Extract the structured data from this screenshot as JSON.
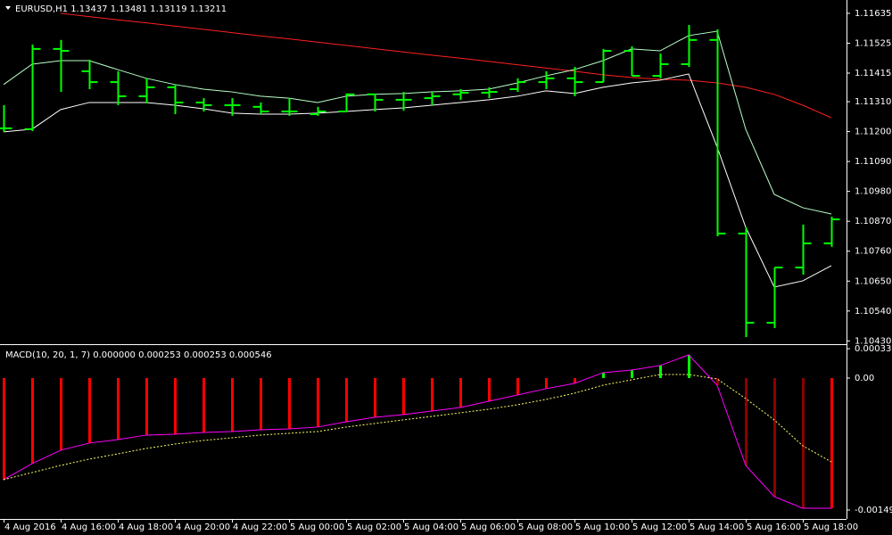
{
  "chart_data": [
    {
      "type": "ohlc",
      "title": "EURUSD,H1  1.13437 1.13481 1.13119 1.13211",
      "color": "#00ff00",
      "open": [
        1.11212,
        1.11209,
        1.11504,
        1.11422,
        1.11382,
        1.1133,
        1.11363,
        1.11307,
        1.11297,
        1.11291,
        1.11274,
        1.11264,
        1.11274,
        1.11337,
        1.11317,
        1.11323,
        1.11337,
        1.11343,
        1.11356,
        1.11382,
        1.11396,
        1.11382,
        1.11497,
        1.11405,
        1.11448,
        1.11537,
        1.10825,
        1.10497,
        1.107,
        1.10789
      ],
      "high": [
        1.11297,
        1.1152,
        1.11537,
        1.11464,
        1.11422,
        1.11396,
        1.11373,
        1.11323,
        1.11323,
        1.11307,
        1.11323,
        1.11291,
        1.1134,
        1.1134,
        1.11346,
        1.11346,
        1.11356,
        1.11363,
        1.11396,
        1.11422,
        1.11438,
        1.11504,
        1.11514,
        1.11487,
        1.11592,
        1.11576,
        1.10848,
        1.107,
        1.10858,
        1.10887
      ],
      "low": [
        1.11199,
        1.11202,
        1.11346,
        1.11356,
        1.11297,
        1.11304,
        1.11264,
        1.11274,
        1.11258,
        1.11264,
        1.11258,
        1.11258,
        1.11274,
        1.11274,
        1.11277,
        1.11297,
        1.11317,
        1.11323,
        1.11346,
        1.11356,
        1.1133,
        1.11382,
        1.11405,
        1.11396,
        1.11438,
        1.10815,
        1.10444,
        1.10477,
        1.10674,
        1.10776
      ],
      "close": [
        1.11212,
        1.11504,
        1.11497,
        1.11382,
        1.1133,
        1.11363,
        1.11307,
        1.11297,
        1.11297,
        1.11274,
        1.11274,
        1.11274,
        1.11337,
        1.11317,
        1.11317,
        1.1133,
        1.11343,
        1.11346,
        1.11382,
        1.11396,
        1.11382,
        1.11497,
        1.11405,
        1.11448,
        1.11537,
        1.10825,
        1.10497,
        1.107,
        1.10789,
        1.10877
      ],
      "overlays": [
        {
          "color": "#ff2020",
          "values": [
            null,
            null,
            1.11635,
            1.11623,
            1.11611,
            1.116,
            1.11588,
            1.11576,
            1.11564,
            1.11552,
            1.11541,
            1.11529,
            1.11517,
            1.11505,
            1.11493,
            1.11481,
            1.1147,
            1.11458,
            1.11446,
            1.11434,
            1.11422,
            1.11409,
            1.11399,
            1.11392,
            1.11389,
            1.11379,
            1.11363,
            1.11337,
            1.11297,
            1.11251
          ]
        },
        {
          "color": "#b8ffc8",
          "values": [
            1.11373,
            1.11448,
            1.11461,
            1.11461,
            1.11428,
            1.11396,
            1.11373,
            1.11356,
            1.11346,
            1.1133,
            1.11323,
            1.11307,
            1.1133,
            1.11337,
            1.1134,
            1.11346,
            1.1135,
            1.11356,
            1.11379,
            1.11405,
            1.11428,
            1.11461,
            1.11504,
            1.11497,
            1.11553,
            1.11569,
            1.11209,
            1.10969,
            1.1092,
            1.10897
          ]
        },
        {
          "color": "#ffffff",
          "values": [
            1.11199,
            1.11209,
            1.11281,
            1.11307,
            1.11307,
            1.11307,
            1.11297,
            1.11284,
            1.11268,
            1.11264,
            1.11264,
            1.11268,
            1.11274,
            1.11281,
            1.11287,
            1.11297,
            1.11307,
            1.11317,
            1.1133,
            1.1135,
            1.1134,
            1.11363,
            1.11379,
            1.11389,
            1.11412,
            1.11143,
            1.10848,
            1.10628,
            1.10651,
            1.10707
          ]
        }
      ],
      "ylim": [
        1.10418,
        1.11684
      ],
      "yticks": [
        1.11635,
        1.11525,
        1.11415,
        {
          "value": 1.1131,
          "label": "1.11310"
        },
        {
          "value": 1.112,
          "label": "1.11200"
        },
        {
          "value": 1.1109,
          "label": "1.11090"
        },
        {
          "value": 1.1098,
          "label": "1.10980"
        },
        {
          "value": 1.1087,
          "label": "1.10870"
        },
        {
          "value": 1.1076,
          "label": "1.10760"
        },
        {
          "value": 1.1065,
          "label": "1.10650"
        },
        {
          "value": 1.1054,
          "label": "1.10540"
        },
        {
          "value": 1.1043,
          "label": "1.10430"
        }
      ]
    },
    {
      "type": "macd",
      "title": "MACD(10, 20, 1, 7) 0.000000 0.000253 0.000253 0.000546",
      "categories": [
        "4 Aug 2016",
        null,
        "4 Aug 16:00",
        null,
        "4 Aug 18:00",
        null,
        "4 Aug 20:00",
        null,
        "4 Aug 22:00",
        null,
        "5 Aug 00:00",
        null,
        "5 Aug 02:00",
        null,
        "5 Aug 04:00",
        null,
        "5 Aug 06:00",
        null,
        "5 Aug 08:00",
        null,
        "5 Aug 10:00",
        null,
        "5 Aug 12:00",
        null,
        "5 Aug 14:00",
        null,
        "5 Aug 16:00",
        null,
        "5 Aug 18:00",
        null
      ],
      "histogram": {
        "values": [
          -0.001153,
          -0.000971,
          -0.000819,
          -0.000738,
          -0.000698,
          -0.000647,
          -0.000637,
          -0.000617,
          -0.000607,
          -0.000587,
          -0.000577,
          -0.000556,
          -0.000496,
          -0.000445,
          -0.000415,
          -0.000374,
          -0.000334,
          -0.000263,
          -0.000192,
          -0.000121,
          -6.1e-05,
          6.1e-05,
          9.1e-05,
          0.000142,
          0.000263,
          -8.1e-05,
          -0.000991,
          -0.001345,
          -0.001477,
          -0.001477
        ],
        "colors": [
          "#ff0000",
          "#ff0000",
          "#ff0000",
          "#ff0000",
          "#ff0000",
          "#ff0000",
          "#ff0000",
          "#ff0000",
          "#ff0000",
          "#ff0000",
          "#ff0000",
          "#ff0000",
          "#ff0000",
          "#ff0000",
          "#ff0000",
          "#ff0000",
          "#ff0000",
          "#ff0000",
          "#ff0000",
          "#ff0000",
          "#ff0000",
          "#00ff00",
          "#00ff00",
          "#00ff00",
          "#00ff00",
          "#8b0000",
          "#8b0000",
          "#8b0000",
          "#8b0000",
          "#ff0000"
        ]
      },
      "main_color": "#ff00ff",
      "signal": {
        "color": "#ffff66",
        "values": [
          -0.001153,
          -0.001072,
          -0.000991,
          -0.00092,
          -0.00086,
          -0.000799,
          -0.000749,
          -0.000708,
          -0.000678,
          -0.000647,
          -0.000627,
          -0.000607,
          -0.000556,
          -0.000516,
          -0.000475,
          -0.000435,
          -0.000394,
          -0.000354,
          -0.000303,
          -0.000243,
          -0.000172,
          -8.1e-05,
          -2e-05,
          4e-05,
          4e-05,
          -1e-05,
          -0.000233,
          -0.000475,
          -0.000769,
          -0.000951
        ]
      },
      "ylim": [
        -0.001639,
        0.000364
      ],
      "yticks": [
        0.000333,
        {
          "value": 0,
          "label": "0.00"
        },
        -0.001497
      ]
    }
  ]
}
